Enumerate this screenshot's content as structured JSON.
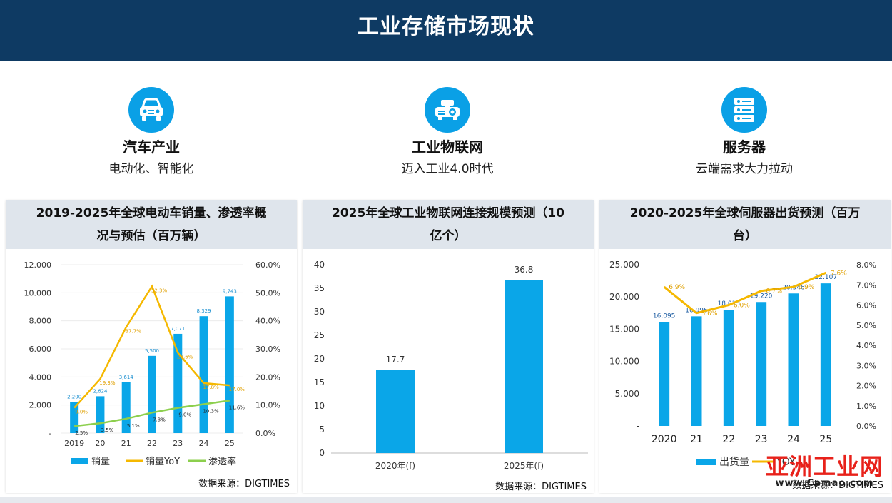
{
  "header": {
    "title": "工业存储市场现状"
  },
  "features": [
    {
      "title": "汽车产业",
      "subtitle": "电动化、智能化",
      "icon": "car-icon"
    },
    {
      "title": "工业物联网",
      "subtitle": "迈入工业4.0时代",
      "icon": "projector-icon"
    },
    {
      "title": "服务器",
      "subtitle": "云端需求大力拉动",
      "icon": "server-icon"
    }
  ],
  "panels": [
    {
      "title": "2019-2025年全球电动车销量、渗透率概况与预估（百万辆）",
      "source": "数据来源：DIGTIMES"
    },
    {
      "title": "2025年全球工业物联网连接规模预测（10亿个）",
      "source": "数据来源：DIGTIMES"
    },
    {
      "title": "2020-2025年全球伺服器出货预测（百万台）",
      "source": "数据来源：DIGTIMES"
    }
  ],
  "watermark": {
    "brand": "亚洲工业网",
    "url": "www.Cemao.com"
  },
  "colors": {
    "header": "#0e3a63",
    "bar": "#0aa6e8",
    "yoy": "#f5b800",
    "penetration": "#8ccf4d"
  },
  "chart_data": [
    {
      "type": "bar",
      "title": "2019-2025年全球电动车销量、渗透率概况与预估（百万辆）",
      "categories": [
        "2019",
        "20",
        "21",
        "22",
        "23",
        "24",
        "25"
      ],
      "y_ticks": [
        "-",
        "2.000",
        "4.000",
        "6.000",
        "8.000",
        "10.000",
        "12.000"
      ],
      "y2_ticks": [
        "0.0%",
        "10.0%",
        "20.0%",
        "30.0%",
        "40.0%",
        "50.0%",
        "60.0%"
      ],
      "ylim": [
        0,
        12
      ],
      "y2lim": [
        0,
        60
      ],
      "series": [
        {
          "name": "销量",
          "kind": "bar",
          "values": [
            2.2,
            2.624,
            3.614,
            5.5,
            7.071,
            8.329,
            9.743
          ],
          "labels": [
            "2,200",
            "2,624",
            "3,614",
            "5,500",
            "7,071",
            "8,329",
            "9,743"
          ]
        },
        {
          "name": "销量YoY",
          "kind": "line",
          "axis": "right",
          "values": [
            9.0,
            19.3,
            37.7,
            52.3,
            28.6,
            17.8,
            17.0
          ],
          "labels": [
            "9.0%",
            "19.3%",
            "37.7%",
            "52.3%",
            "28.6%",
            "17.8%",
            "17.0%"
          ]
        },
        {
          "name": "渗透率",
          "kind": "line",
          "axis": "right",
          "values": [
            2.5,
            3.5,
            5.1,
            7.3,
            9.0,
            10.3,
            11.6
          ],
          "labels": [
            "2.5%",
            "3.5%",
            "5.1%",
            "7.3%",
            "9.0%",
            "10.3%",
            "11.6%"
          ]
        }
      ],
      "legend": [
        "销量",
        "销量YoY",
        "渗透率"
      ]
    },
    {
      "type": "bar",
      "title": "2025年全球工业物联网连接规模预测（10亿个）",
      "categories": [
        "2020年(f)",
        "2025年(f)"
      ],
      "y_ticks": [
        "0",
        "5",
        "10",
        "15",
        "20",
        "25",
        "30",
        "35",
        "40"
      ],
      "ylim": [
        0,
        40
      ],
      "values": [
        17.7,
        36.8
      ],
      "labels": [
        "17.7",
        "36.8"
      ]
    },
    {
      "type": "bar",
      "title": "2020-2025年全球伺服器出货预测（百万台）",
      "categories": [
        "2020",
        "21",
        "22",
        "23",
        "24",
        "25"
      ],
      "y_ticks": [
        "-",
        "5.000",
        "10.000",
        "15.000",
        "20.000",
        "25.000"
      ],
      "y2_ticks": [
        "0.0%",
        "1.0%",
        "2.0%",
        "3.0%",
        "4.0%",
        "5.0%",
        "6.0%",
        "7.0%",
        "8.0%"
      ],
      "ylim": [
        0,
        25
      ],
      "y2lim": [
        0,
        8
      ],
      "series": [
        {
          "name": "出货量",
          "kind": "bar",
          "values": [
            16.095,
            16.996,
            18.013,
            19.22,
            20.546,
            22.107
          ],
          "labels": [
            "16.095",
            "16.996",
            "18.013",
            "19.220",
            "20.546",
            "22.107"
          ]
        },
        {
          "name": "YOY",
          "kind": "line",
          "axis": "right",
          "values": [
            6.9,
            5.6,
            6.0,
            6.7,
            6.9,
            7.6
          ],
          "labels": [
            "6.9%",
            "5.6%",
            "6.0%",
            "6.7%",
            "6.9%",
            "7.6%"
          ]
        }
      ],
      "legend": [
        "出货量",
        "YOY"
      ]
    }
  ]
}
